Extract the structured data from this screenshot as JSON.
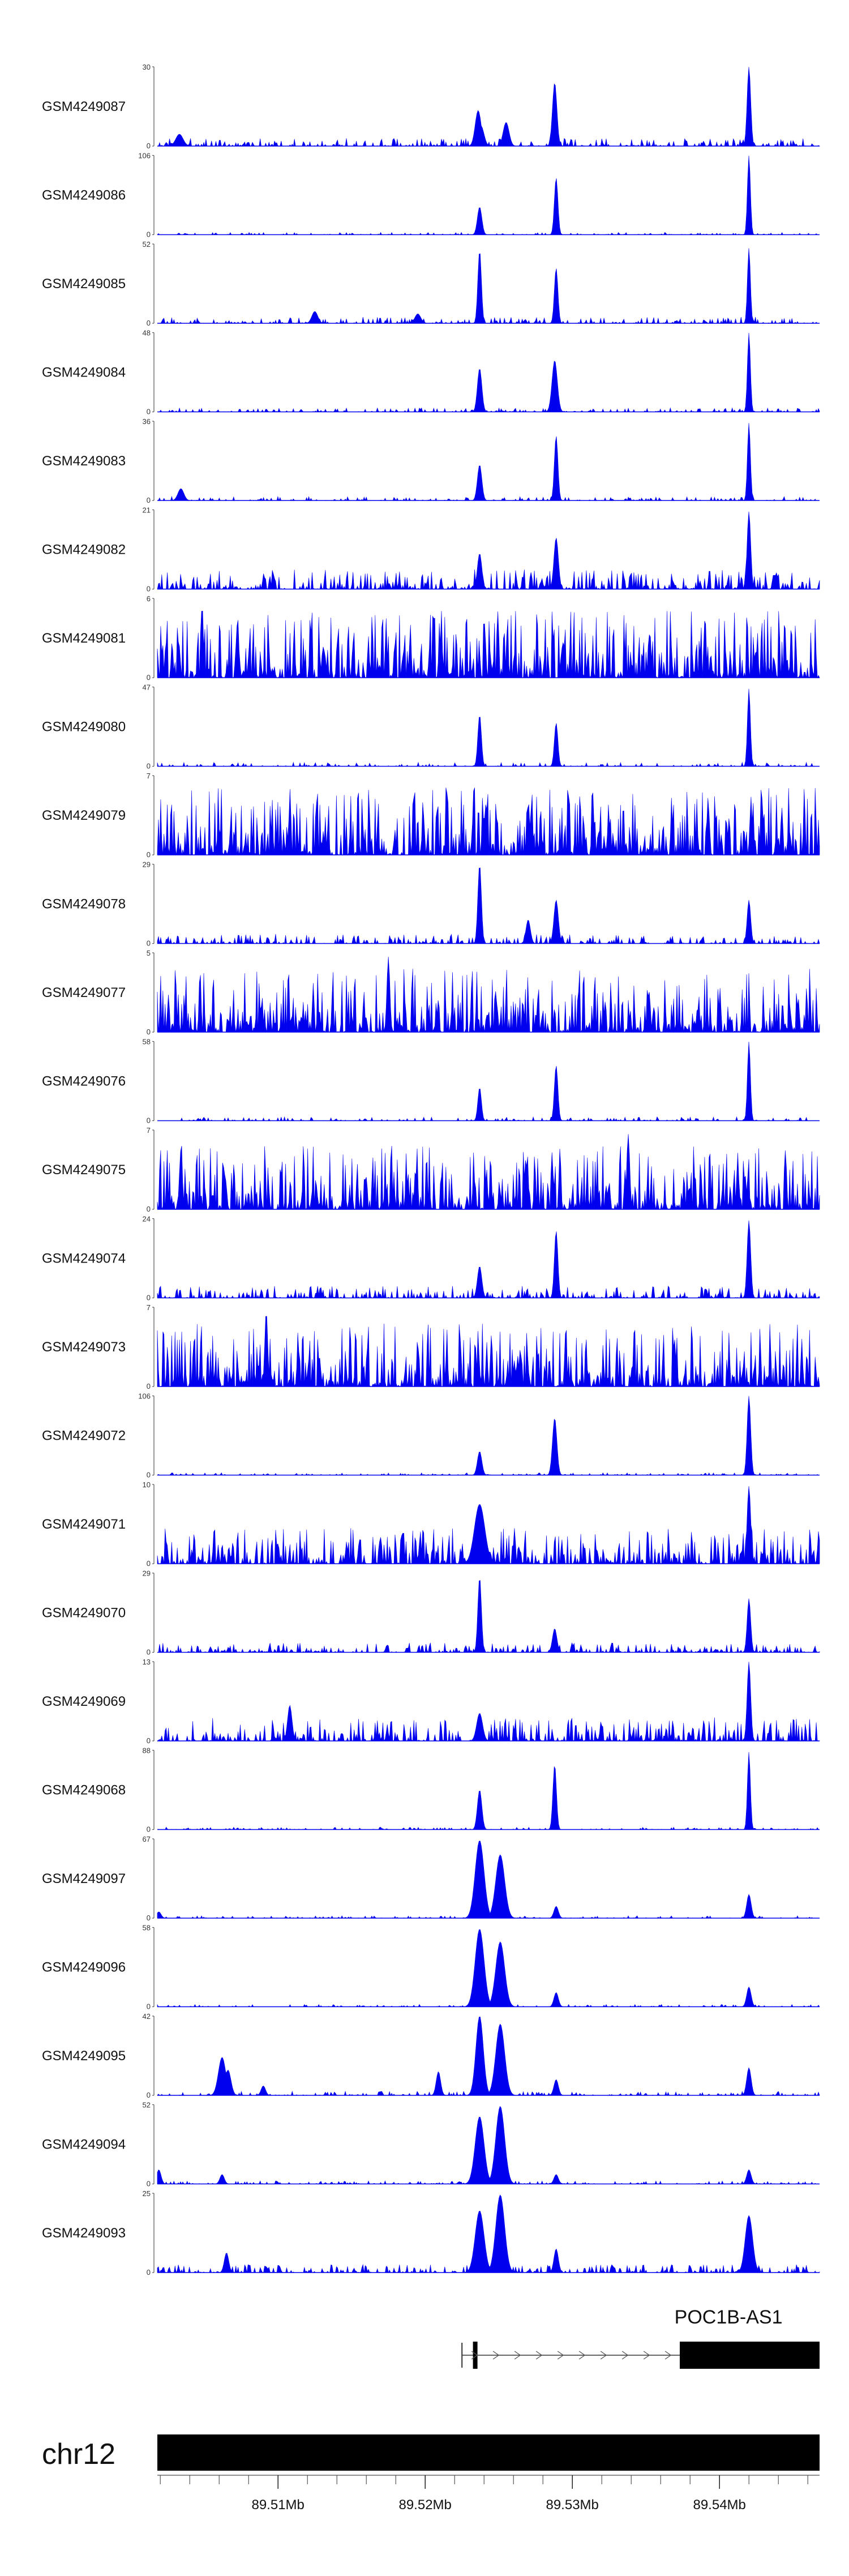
{
  "chart_data": {
    "type": "area",
    "track_color": "#0000ee",
    "x_domain_mb": [
      89.5018,
      89.5468
    ],
    "tracks": [
      {
        "label": "GSM4249087",
        "ymax": "30",
        "ymin": "0",
        "max": 30,
        "noise": 0.1,
        "freq": 0.55,
        "peaks": [
          [
            89.5033,
            0.15,
            0.25
          ],
          [
            89.5236,
            0.45,
            0.2
          ],
          [
            89.5238,
            0.25,
            0.2
          ],
          [
            89.5255,
            0.3,
            0.2
          ],
          [
            89.5288,
            0.8,
            0.15
          ],
          [
            89.542,
            1.0,
            0.12
          ]
        ]
      },
      {
        "label": "GSM4249086",
        "ymax": "106",
        "ymin": "0",
        "max": 106,
        "noise": 0.03,
        "freq": 0.4,
        "peaks": [
          [
            89.5237,
            0.35,
            0.15
          ],
          [
            89.5289,
            0.72,
            0.12
          ],
          [
            89.542,
            1.0,
            0.1
          ]
        ]
      },
      {
        "label": "GSM4249085",
        "ymax": "52",
        "ymin": "0",
        "max": 52,
        "noise": 0.08,
        "freq": 0.5,
        "peaks": [
          [
            89.5237,
            0.92,
            0.12
          ],
          [
            89.5289,
            0.7,
            0.12
          ],
          [
            89.542,
            0.95,
            0.1
          ],
          [
            89.5125,
            0.15,
            0.2
          ],
          [
            89.5195,
            0.12,
            0.2
          ]
        ]
      },
      {
        "label": "GSM4249084",
        "ymax": "48",
        "ymin": "0",
        "max": 48,
        "noise": 0.05,
        "freq": 0.45,
        "peaks": [
          [
            89.5237,
            0.55,
            0.15
          ],
          [
            89.5288,
            0.65,
            0.18
          ],
          [
            89.542,
            1.0,
            0.1
          ]
        ]
      },
      {
        "label": "GSM4249083",
        "ymax": "36",
        "ymin": "0",
        "max": 36,
        "noise": 0.05,
        "freq": 0.4,
        "peaks": [
          [
            89.5034,
            0.15,
            0.2
          ],
          [
            89.5237,
            0.45,
            0.15
          ],
          [
            89.5289,
            0.82,
            0.12
          ],
          [
            89.542,
            0.98,
            0.1
          ]
        ]
      },
      {
        "label": "GSM4249082",
        "ymax": "21",
        "ymin": "0",
        "max": 21,
        "noise": 0.25,
        "freq": 0.65,
        "peaks": [
          [
            89.5237,
            0.45,
            0.15
          ],
          [
            89.5289,
            0.65,
            0.15
          ],
          [
            89.542,
            0.98,
            0.12
          ]
        ]
      },
      {
        "label": "GSM4249081",
        "ymax": "6",
        "ymin": "0",
        "max": 6,
        "noise": 0.85,
        "freq": 0.9,
        "peaks": []
      },
      {
        "label": "GSM4249080",
        "ymax": "47",
        "ymin": "0",
        "max": 47,
        "noise": 0.05,
        "freq": 0.4,
        "peaks": [
          [
            89.5237,
            0.65,
            0.12
          ],
          [
            89.5289,
            0.55,
            0.12
          ],
          [
            89.542,
            0.98,
            0.1
          ]
        ]
      },
      {
        "label": "GSM4249079",
        "ymax": "7",
        "ymin": "0",
        "max": 7,
        "noise": 0.85,
        "freq": 0.9,
        "peaks": []
      },
      {
        "label": "GSM4249078",
        "ymax": "29",
        "ymin": "0",
        "max": 29,
        "noise": 0.12,
        "freq": 0.55,
        "peaks": [
          [
            89.5237,
            1.0,
            0.12
          ],
          [
            89.5289,
            0.55,
            0.15
          ],
          [
            89.542,
            0.55,
            0.12
          ],
          [
            89.527,
            0.3,
            0.15
          ]
        ]
      },
      {
        "label": "GSM4249077",
        "ymax": "5",
        "ymin": "0",
        "max": 5,
        "noise": 0.8,
        "freq": 0.9,
        "peaks": [
          [
            89.5175,
            0.95,
            0.1
          ]
        ]
      },
      {
        "label": "GSM4249076",
        "ymax": "58",
        "ymin": "0",
        "max": 58,
        "noise": 0.05,
        "freq": 0.45,
        "peaks": [
          [
            89.5237,
            0.42,
            0.12
          ],
          [
            89.5289,
            0.7,
            0.12
          ],
          [
            89.542,
            1.0,
            0.1
          ]
        ]
      },
      {
        "label": "GSM4249075",
        "ymax": "7",
        "ymin": "0",
        "max": 7,
        "noise": 0.8,
        "freq": 0.9,
        "peaks": [
          [
            89.5034,
            0.75,
            0.1
          ],
          [
            89.5338,
            0.95,
            0.1
          ]
        ]
      },
      {
        "label": "GSM4249074",
        "ymax": "24",
        "ymin": "0",
        "max": 24,
        "noise": 0.15,
        "freq": 0.6,
        "peaks": [
          [
            89.5237,
            0.4,
            0.15
          ],
          [
            89.5289,
            0.85,
            0.12
          ],
          [
            89.542,
            0.98,
            0.12
          ]
        ]
      },
      {
        "label": "GSM4249073",
        "ymax": "7",
        "ymin": "0",
        "max": 7,
        "noise": 0.8,
        "freq": 0.9,
        "peaks": [
          [
            89.5092,
            0.95,
            0.1
          ]
        ]
      },
      {
        "label": "GSM4249072",
        "ymax": "106",
        "ymin": "0",
        "max": 106,
        "noise": 0.03,
        "freq": 0.4,
        "peaks": [
          [
            89.5237,
            0.3,
            0.15
          ],
          [
            89.5288,
            0.72,
            0.15
          ],
          [
            89.542,
            1.0,
            0.12
          ]
        ]
      },
      {
        "label": "GSM4249071",
        "ymax": "10",
        "ymin": "0",
        "max": 10,
        "noise": 0.45,
        "freq": 0.75,
        "peaks": [
          [
            89.5237,
            0.75,
            0.35
          ],
          [
            89.542,
            0.98,
            0.12
          ]
        ]
      },
      {
        "label": "GSM4249070",
        "ymax": "29",
        "ymin": "0",
        "max": 29,
        "noise": 0.12,
        "freq": 0.6,
        "peaks": [
          [
            89.5237,
            0.95,
            0.12
          ],
          [
            89.542,
            0.68,
            0.12
          ],
          [
            89.5288,
            0.3,
            0.15
          ]
        ]
      },
      {
        "label": "GSM4249069",
        "ymax": "13",
        "ymin": "0",
        "max": 13,
        "noise": 0.3,
        "freq": 0.7,
        "peaks": [
          [
            89.542,
            1.0,
            0.12
          ],
          [
            89.5237,
            0.35,
            0.2
          ],
          [
            89.5108,
            0.45,
            0.15
          ]
        ]
      },
      {
        "label": "GSM4249068",
        "ymax": "88",
        "ymin": "0",
        "max": 88,
        "noise": 0.03,
        "freq": 0.4,
        "peaks": [
          [
            89.5237,
            0.5,
            0.15
          ],
          [
            89.5288,
            0.82,
            0.12
          ],
          [
            89.542,
            0.98,
            0.1
          ]
        ]
      },
      {
        "label": "GSM4249097",
        "ymax": "67",
        "ymin": "0",
        "max": 67,
        "noise": 0.03,
        "freq": 0.35,
        "peaks": [
          [
            89.5237,
            0.98,
            0.3
          ],
          [
            89.5251,
            0.8,
            0.3
          ],
          [
            89.5289,
            0.15,
            0.15
          ],
          [
            89.542,
            0.3,
            0.15
          ],
          [
            89.5019,
            0.08,
            0.15
          ]
        ]
      },
      {
        "label": "GSM4249096",
        "ymax": "58",
        "ymin": "0",
        "max": 58,
        "noise": 0.03,
        "freq": 0.35,
        "peaks": [
          [
            89.5237,
            0.98,
            0.3
          ],
          [
            89.5251,
            0.82,
            0.3
          ],
          [
            89.5289,
            0.18,
            0.15
          ],
          [
            89.542,
            0.25,
            0.15
          ]
        ]
      },
      {
        "label": "GSM4249095",
        "ymax": "42",
        "ymin": "0",
        "max": 42,
        "noise": 0.05,
        "freq": 0.4,
        "peaks": [
          [
            89.5062,
            0.48,
            0.25
          ],
          [
            89.5066,
            0.32,
            0.2
          ],
          [
            89.5237,
            1.0,
            0.25
          ],
          [
            89.5251,
            0.9,
            0.3
          ],
          [
            89.5209,
            0.3,
            0.15
          ],
          [
            89.5289,
            0.2,
            0.15
          ],
          [
            89.542,
            0.35,
            0.15
          ],
          [
            89.509,
            0.12,
            0.15
          ]
        ]
      },
      {
        "label": "GSM4249094",
        "ymax": "52",
        "ymin": "0",
        "max": 52,
        "noise": 0.04,
        "freq": 0.4,
        "peaks": [
          [
            89.5237,
            0.85,
            0.3
          ],
          [
            89.5251,
            0.98,
            0.3
          ],
          [
            89.5019,
            0.18,
            0.15
          ],
          [
            89.5062,
            0.12,
            0.15
          ],
          [
            89.5289,
            0.12,
            0.15
          ],
          [
            89.542,
            0.18,
            0.15
          ]
        ]
      },
      {
        "label": "GSM4249093",
        "ymax": "25",
        "ymin": "0",
        "max": 25,
        "noise": 0.1,
        "freq": 0.55,
        "peaks": [
          [
            89.5237,
            0.78,
            0.3
          ],
          [
            89.5251,
            0.98,
            0.3
          ],
          [
            89.5289,
            0.3,
            0.15
          ],
          [
            89.542,
            0.72,
            0.25
          ],
          [
            89.5065,
            0.25,
            0.15
          ]
        ]
      }
    ],
    "gene": {
      "name": "POC1B-AS1",
      "start_mb": 89.5225,
      "exon1_mb": 89.5234,
      "thick_start_mb": 89.5373,
      "end_mb": 89.5468
    },
    "chromosome": {
      "name": "chr12",
      "tick_labels": [
        {
          "mb": 89.51,
          "label": "89.51Mb"
        },
        {
          "mb": 89.52,
          "label": "89.52Mb"
        },
        {
          "mb": 89.53,
          "label": "89.53Mb"
        },
        {
          "mb": 89.54,
          "label": "89.54Mb"
        }
      ],
      "minor_tick_step_mb": 0.002
    }
  }
}
